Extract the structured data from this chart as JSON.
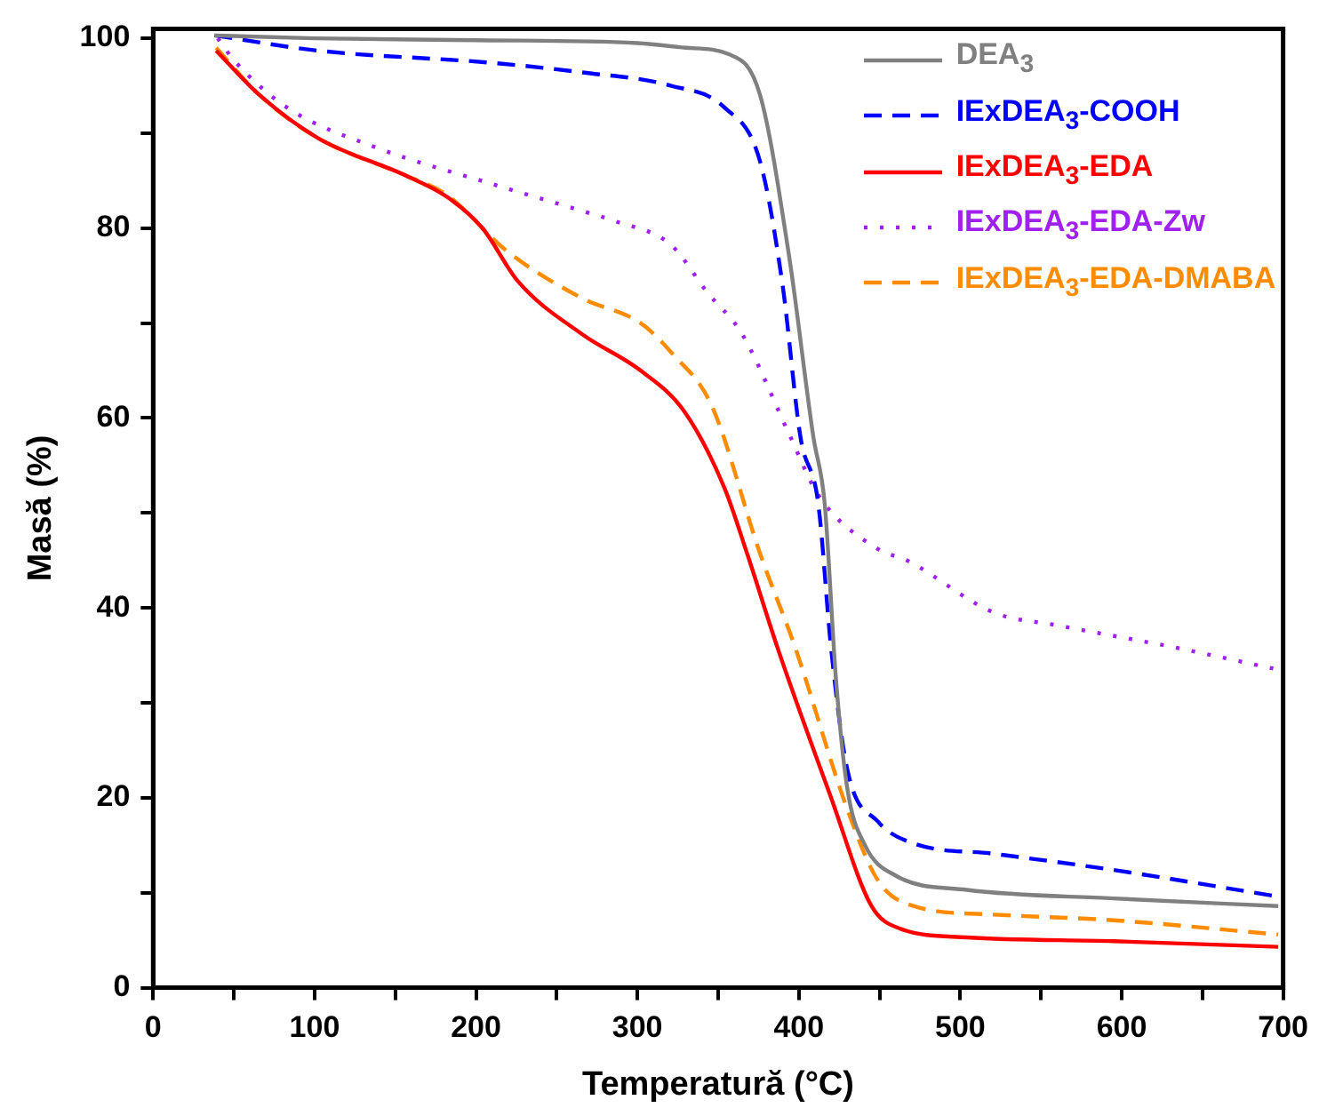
{
  "chart_data": {
    "type": "line",
    "xlabel": "Temperatură (°C)",
    "ylabel": "Masă (%)",
    "xlim": [
      0,
      700
    ],
    "ylim": [
      0,
      101
    ],
    "xticks": [
      0,
      {
        "value": 50,
        "label": null
      },
      100,
      {
        "value": 150,
        "label": null
      },
      200,
      {
        "value": 250,
        "label": null
      },
      300,
      {
        "value": 350,
        "label": null
      },
      400,
      {
        "value": 450,
        "label": null
      },
      500,
      {
        "value": 550,
        "label": null
      },
      600,
      {
        "value": 650,
        "label": null
      },
      700
    ],
    "yticks": [
      0,
      {
        "value": 10,
        "label": null
      },
      20,
      {
        "value": 30,
        "label": null
      },
      40,
      {
        "value": 50,
        "label": null
      },
      60,
      {
        "value": 70,
        "label": null
      },
      80,
      {
        "value": 90,
        "label": null
      },
      100
    ],
    "grid": false,
    "legend": "top right",
    "marker": "none",
    "series": [
      {
        "name": "DEA$_{3}$",
        "color": "#808080",
        "line_style": "solid",
        "x": [
          38,
          100,
          200,
          300,
          330,
          357,
          376,
          394,
          409,
          416,
          423,
          430,
          441,
          460,
          504,
          595,
          697
        ],
        "values": [
          100.3,
          100,
          99.8,
          99.5,
          99,
          98.3,
          94,
          77,
          58,
          51,
          32.5,
          21,
          15,
          11.8,
          10.3,
          9.4,
          8.6
        ]
      },
      {
        "name": "IExDEA$_{3}$-COOH",
        "color": "#0000ff",
        "line_style": "dashed",
        "x": [
          38,
          102,
          211,
          266,
          321,
          354,
          376,
          390,
          401,
          412,
          420,
          430,
          449,
          471,
          521,
          595,
          697
        ],
        "values": [
          100.3,
          98.7,
          97.4,
          96.4,
          95,
          92.7,
          87,
          73.9,
          58,
          51,
          35.7,
          23,
          17.5,
          15.2,
          14.1,
          12.4,
          9.6
        ]
      },
      {
        "name": "IExDEA$_{3}$-EDA",
        "color": "#ff0000",
        "line_style": "solid",
        "x": [
          39,
          66,
          102,
          157,
          182,
          204,
          226,
          266,
          302,
          329,
          354,
          368,
          387,
          420,
          445,
          463,
          504,
          595,
          697
        ],
        "values": [
          98.7,
          94,
          89.5,
          85.5,
          83.3,
          80,
          74.4,
          68.8,
          65,
          60.7,
          52.6,
          45.7,
          35.7,
          20,
          8.6,
          6.2,
          5.3,
          4.9,
          4.3
        ]
      },
      {
        "name": "IExDEA$_{3}$-EDA-Zw",
        "color": "#a020f0",
        "line_style": "dotted",
        "x": [
          40,
          50,
          83,
          138,
          211,
          266,
          285,
          321,
          343,
          365,
          394,
          412,
          449,
          467,
          521,
          559,
          631,
          697
        ],
        "values": [
          100,
          97.7,
          92.7,
          88.5,
          84.6,
          81.8,
          80.8,
          78.2,
          73.3,
          68.8,
          58.3,
          51.9,
          46.2,
          45,
          39.5,
          38.2,
          35.9,
          33.5
        ]
      },
      {
        "name": "IExDEA$_{3}$-EDA-DMABA",
        "color": "#ff8c00",
        "line_style": "dashed",
        "x": [
          39,
          66,
          102,
          157,
          182,
          219,
          266,
          302,
          321,
          346,
          376,
          398,
          430,
          449,
          471,
          521,
          595,
          697
        ],
        "values": [
          99,
          94,
          89.5,
          85.5,
          83.5,
          77.6,
          72.6,
          70,
          66.9,
          61.3,
          45.7,
          35.7,
          18.8,
          11.3,
          8.6,
          7.7,
          7.1,
          5.6
        ]
      }
    ]
  }
}
